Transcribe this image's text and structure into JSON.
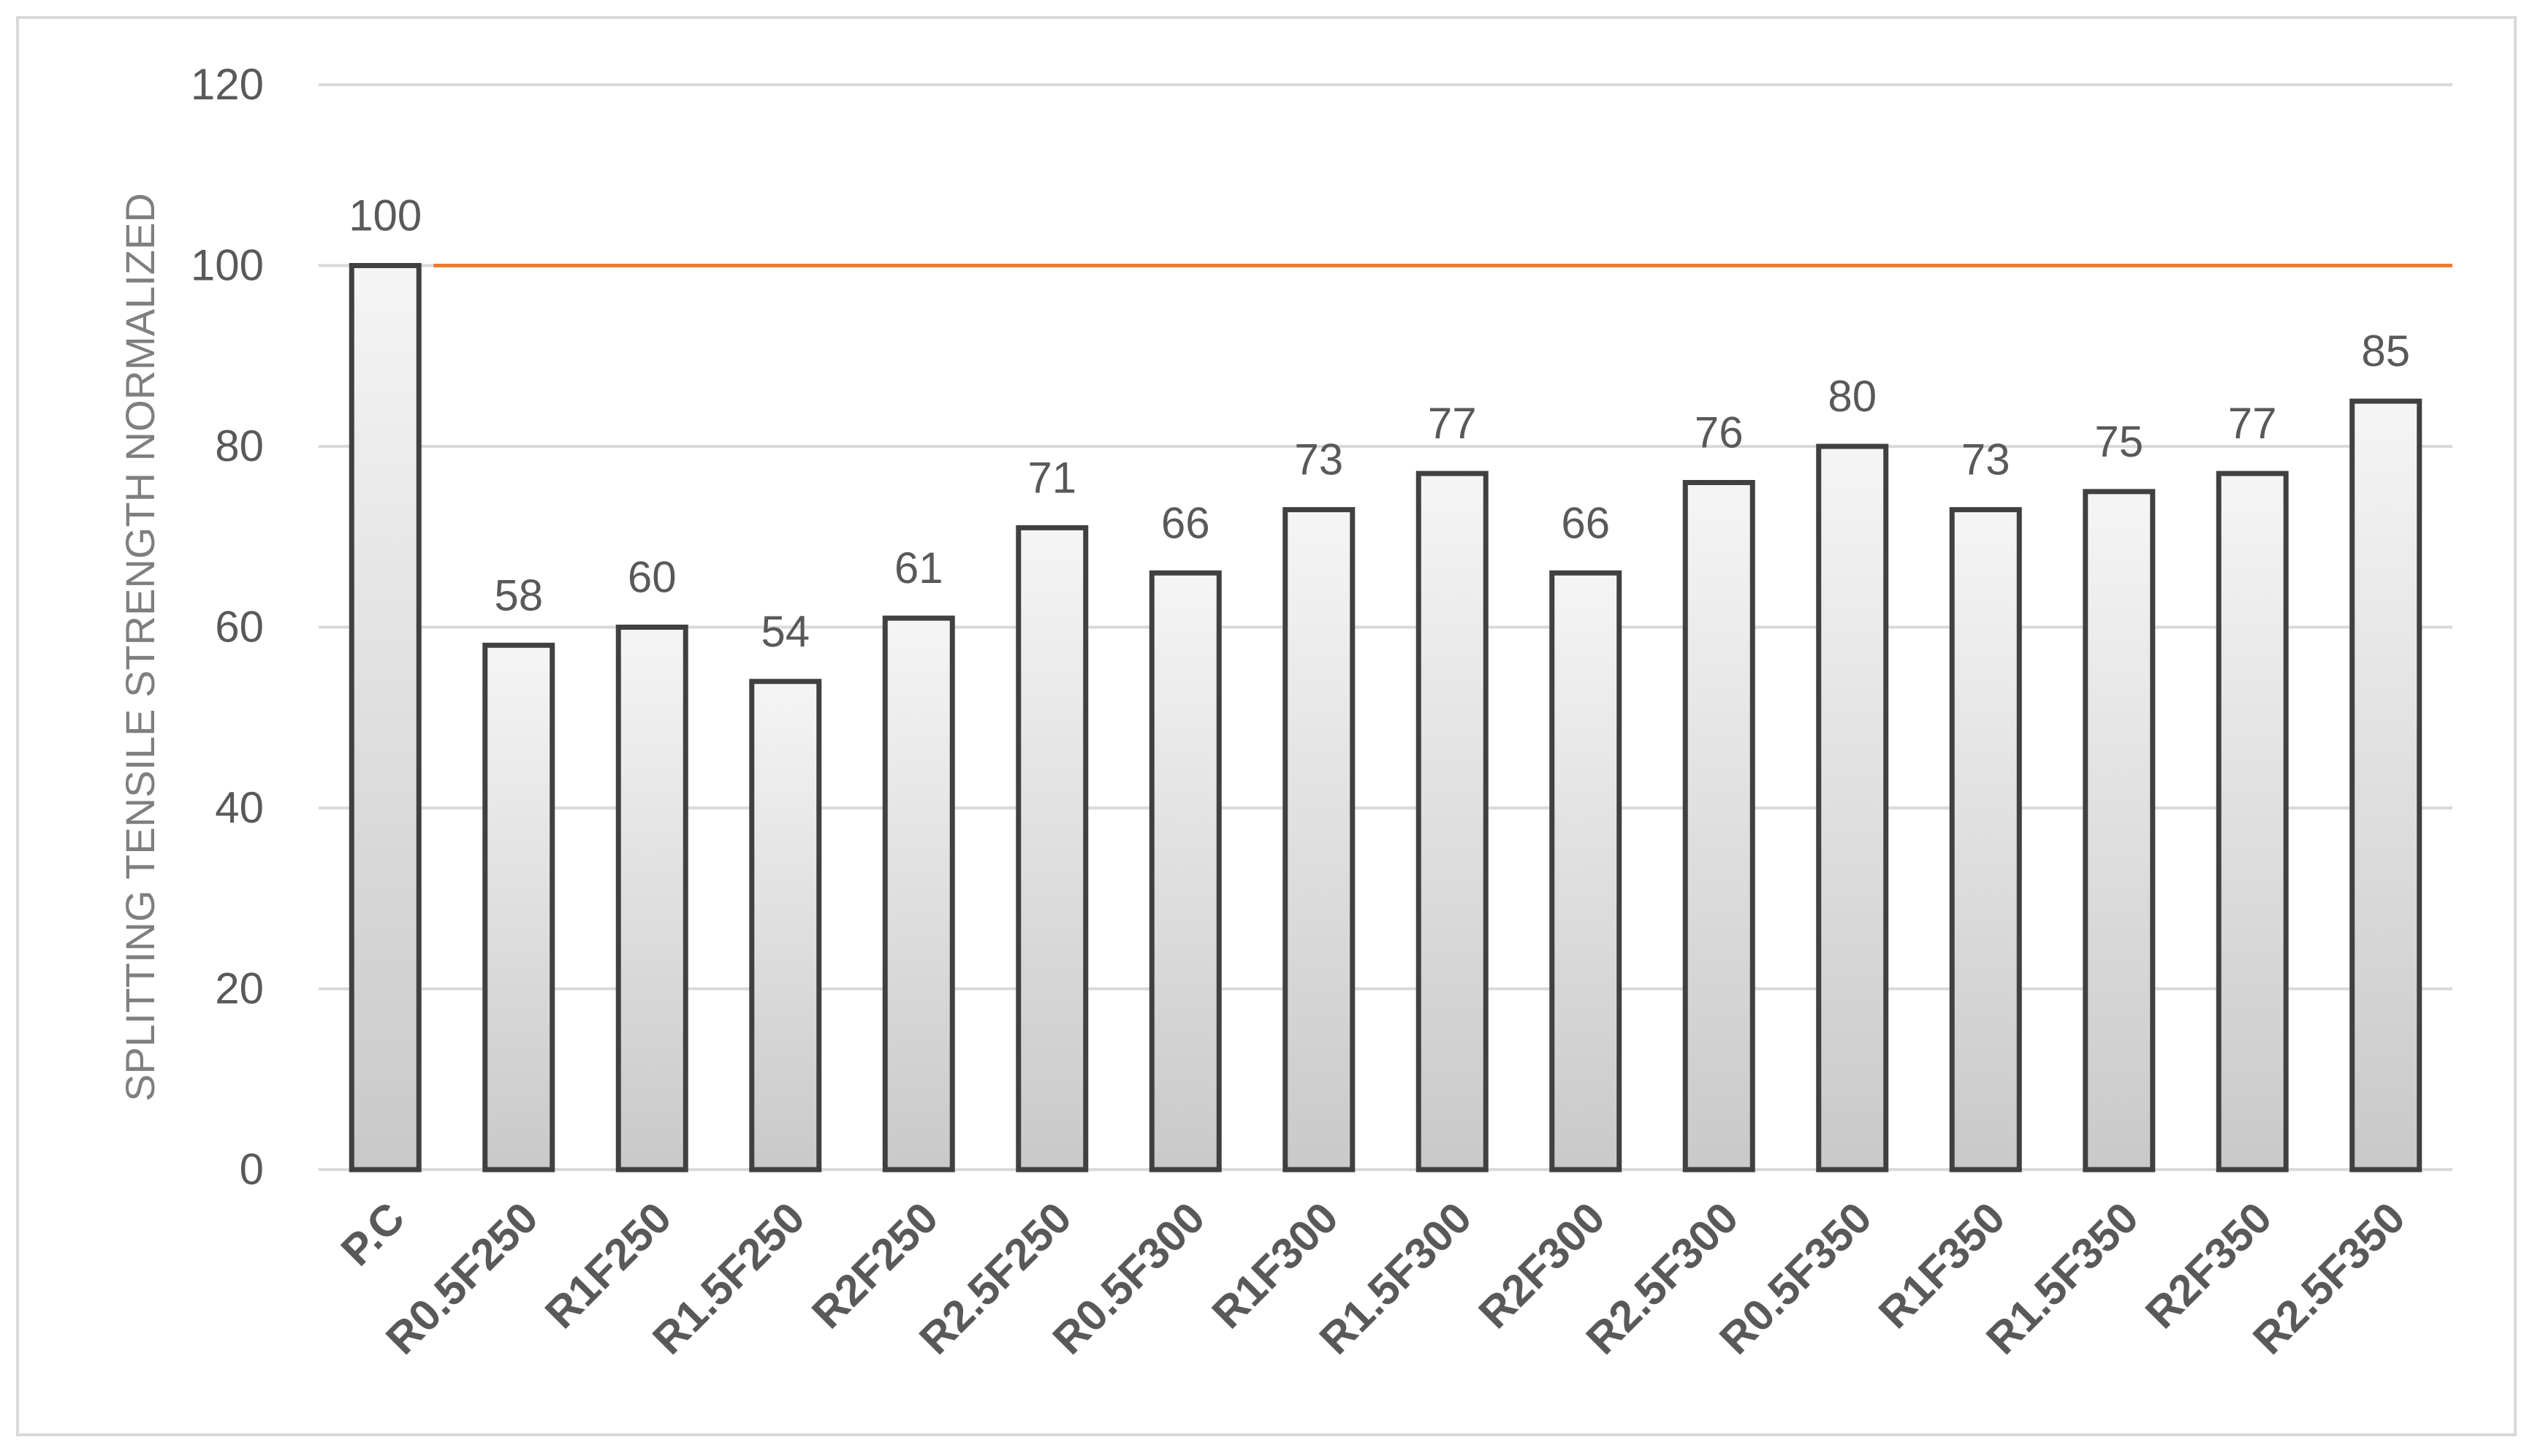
{
  "chart_data": {
    "type": "bar",
    "title": "",
    "xlabel": "",
    "ylabel": "SPLITTING TENSILE STRENGTH NORMALIZED",
    "categories": [
      "P.C",
      "R0.5F250",
      "R1F250",
      "R1.5F250",
      "R2F250",
      "R2.5F250",
      "R0.5F300",
      "R1F300",
      "R1.5F300",
      "R2F300",
      "R2.5F300",
      "R0.5F350",
      "R1F350",
      "R1.5F350",
      "R2F350",
      "R2.5F350"
    ],
    "values": [
      100,
      58,
      60,
      54,
      61,
      71,
      66,
      73,
      77,
      66,
      76,
      80,
      73,
      75,
      77,
      85
    ],
    "data_labels": [
      "100",
      "58",
      "60",
      "54",
      "61",
      "71",
      "66",
      "73",
      "77",
      "66",
      "76",
      "80",
      "73",
      "75",
      "77",
      "85"
    ],
    "ylim": [
      0,
      120
    ],
    "yticks": [
      "0",
      "20",
      "40",
      "60",
      "80",
      "100",
      "120"
    ],
    "reference_line": {
      "value": 100,
      "color": "#ed7d31"
    },
    "grid": true,
    "legend": "none",
    "colors": {
      "bar_top": "#f5f5f5",
      "bar_bottom": "#c9c9c9",
      "bar_border": "#404040",
      "grid": "#d9d9d9",
      "text": "#595959"
    }
  }
}
